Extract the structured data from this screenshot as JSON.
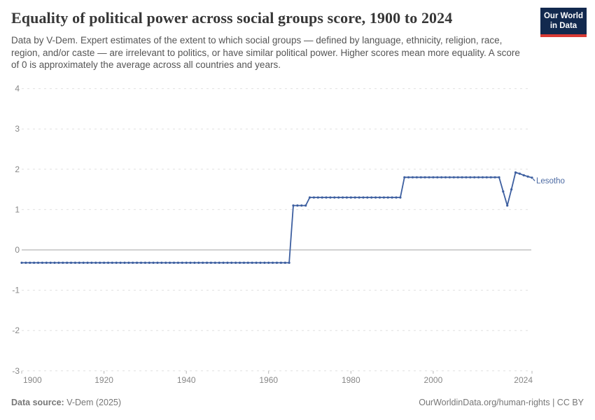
{
  "header": {
    "title": "Equality of political power across social groups score, 1900 to 2024",
    "subtitle": "Data by V-Dem. Expert estimates of the extent to which social groups — defined by language, ethnicity, religion, race, region, and/or caste — are irrelevant to politics, or have similar political power. Higher scores mean more equality. A score of 0 is approximately the average across all countries and years.",
    "logo": {
      "line1": "Our World",
      "line2": "in Data"
    }
  },
  "chart_data": {
    "type": "line",
    "title": "Equality of political power across social groups score, 1900 to 2024",
    "xlabel": "",
    "ylabel": "",
    "xlim": [
      1900,
      2024
    ],
    "ylim": [
      -3,
      4
    ],
    "x_ticks": [
      1900,
      1920,
      1940,
      1960,
      1980,
      2000,
      2024
    ],
    "y_ticks": [
      4,
      3,
      2,
      1,
      0,
      -1,
      -2,
      -3
    ],
    "grid": "dashed horizontal, solid zero line",
    "legend_position": "end-of-line label",
    "markers": true,
    "series": [
      {
        "name": "Lesotho",
        "segments": [
          {
            "from": 1900,
            "to": 1965,
            "value": -0.32
          },
          {
            "from": 1966,
            "to": 1969,
            "value": 1.1
          },
          {
            "from": 1970,
            "to": 1992,
            "value": 1.3
          },
          {
            "from": 1993,
            "to": 2016,
            "value": 1.8
          },
          {
            "from": 2017,
            "to": 2017,
            "value": 1.45
          },
          {
            "from": 2018,
            "to": 2018,
            "value": 1.1
          },
          {
            "from": 2019,
            "to": 2019,
            "value": 1.5
          },
          {
            "from": 2020,
            "to": 2020,
            "value": 1.92
          },
          {
            "from": 2021,
            "to": 2021,
            "value": 1.89
          },
          {
            "from": 2022,
            "to": 2022,
            "value": 1.85
          },
          {
            "from": 2023,
            "to": 2023,
            "value": 1.82
          },
          {
            "from": 2024,
            "to": 2024,
            "value": 1.79
          }
        ]
      }
    ]
  },
  "colors": {
    "line": "#3d5fa0",
    "entity_label": "#4d6ba3",
    "grid": "#e0e0e0",
    "zero_line": "#a3a3a3",
    "axis_text": "#878787",
    "logo_bg": "#12294e",
    "logo_red": "#d93a34"
  },
  "footer": {
    "left_bold": "Data source:",
    "left_text": " V-Dem (2025)",
    "right_text": "OurWorldinData.org/human-rights | CC BY"
  }
}
